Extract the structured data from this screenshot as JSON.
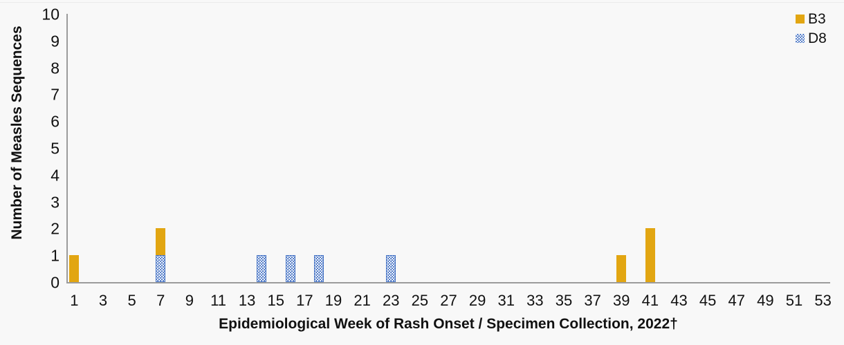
{
  "chart_data": {
    "type": "bar",
    "stacked": true,
    "title": "",
    "xlabel": "Epidemiological Week of Rash Onset / Specimen Collection, 2022†",
    "ylabel": "Number of Measles Sequences",
    "ylim": [
      0,
      10
    ],
    "x_week_range": [
      1,
      53
    ],
    "grid": false,
    "y_ticks": [
      0,
      1,
      2,
      3,
      4,
      5,
      6,
      7,
      8,
      9,
      10
    ],
    "x_tick_labels": [
      1,
      3,
      5,
      7,
      9,
      11,
      13,
      15,
      17,
      19,
      21,
      23,
      25,
      27,
      29,
      31,
      33,
      35,
      37,
      39,
      41,
      43,
      45,
      47,
      49,
      51,
      53
    ],
    "series": [
      {
        "name": "D8",
        "color": "#4472C4",
        "fill": "dotted",
        "data": [
          {
            "week": 7,
            "value": 1
          },
          {
            "week": 14,
            "value": 1
          },
          {
            "week": 16,
            "value": 1
          },
          {
            "week": 18,
            "value": 1
          },
          {
            "week": 23,
            "value": 1
          }
        ]
      },
      {
        "name": "B3",
        "color": "#E2A612",
        "fill": "solid",
        "data": [
          {
            "week": 1,
            "value": 1
          },
          {
            "week": 7,
            "value": 1
          },
          {
            "week": 39,
            "value": 1
          },
          {
            "week": 41,
            "value": 2
          }
        ]
      }
    ],
    "legend_position": "top-right",
    "legend": [
      {
        "label": "B3",
        "color": "#E2A612",
        "pattern": "solid"
      },
      {
        "label": "D8",
        "color": "#4472C4",
        "pattern": "dotted"
      }
    ],
    "axis_color": "#9b9b9b"
  }
}
